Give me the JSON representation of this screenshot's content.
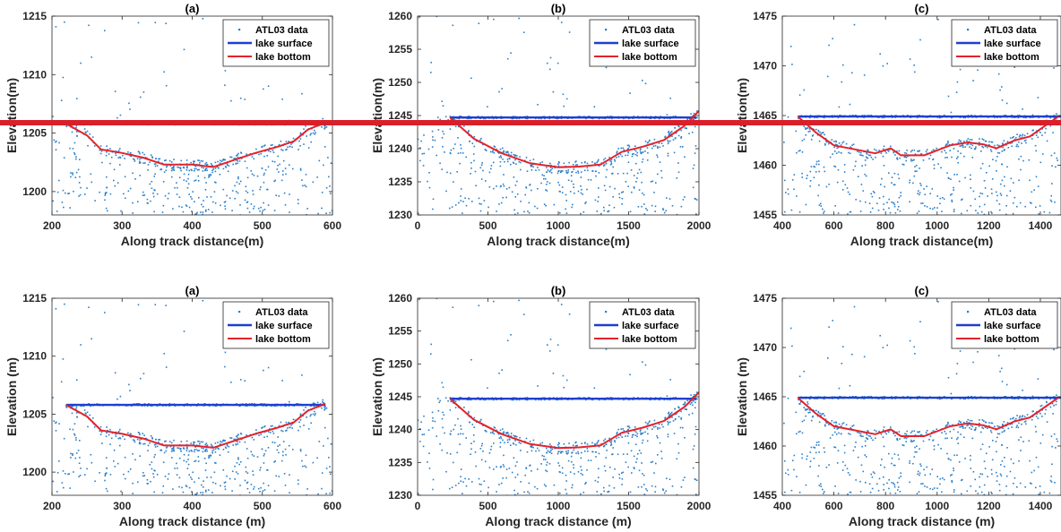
{
  "colors": {
    "points": "#2a7fc9",
    "surface": "#1f3fd0",
    "bottom": "#e3232b",
    "overlay_band": "#d9202a"
  },
  "legend": {
    "points": "ATL03 data",
    "surface": "lake surface",
    "bottom": "lake bottom"
  },
  "chart_data": [
    {
      "type": "scatter",
      "title": "(a)",
      "xlabel": "Along track distance(m)",
      "ylabel": "Elevation(m)",
      "xlim": [
        200,
        600
      ],
      "ylim": [
        1198,
        1215
      ],
      "xticks": [
        200,
        300,
        400,
        500,
        600
      ],
      "yticks": [
        1200,
        1205,
        1210,
        1215
      ],
      "surface": {
        "x": [
          220,
          590
        ],
        "y": 1205.8
      },
      "bottom": {
        "x": [
          220,
          250,
          270,
          300,
          330,
          360,
          400,
          430,
          460,
          490,
          520,
          545,
          565,
          590
        ],
        "y": [
          1205.8,
          1204.8,
          1203.6,
          1203.3,
          1202.9,
          1202.3,
          1202.3,
          1202.1,
          1202.7,
          1203.3,
          1203.8,
          1204.3,
          1205.3,
          1205.9
        ]
      },
      "legend_position": "top-right",
      "grid": false
    },
    {
      "type": "scatter",
      "title": "(b)",
      "xlabel": "Along track distance(m)",
      "ylabel": "Elevation(m)",
      "xlim": [
        0,
        2000
      ],
      "ylim": [
        1230,
        1260
      ],
      "xticks": [
        0,
        500,
        1000,
        1500,
        2000
      ],
      "yticks": [
        1230,
        1235,
        1240,
        1245,
        1250,
        1255,
        1260
      ],
      "surface": {
        "x": [
          230,
          1980
        ],
        "y": 1244.7
      },
      "bottom": {
        "x": [
          230,
          400,
          600,
          800,
          1000,
          1150,
          1300,
          1450,
          1600,
          1750,
          1900,
          2000
        ],
        "y": [
          1244.7,
          1241.5,
          1239.3,
          1237.8,
          1237.2,
          1237.3,
          1237.6,
          1239.5,
          1240.3,
          1241.3,
          1243.5,
          1245.7
        ]
      },
      "legend_position": "top-right",
      "grid": false
    },
    {
      "type": "scatter",
      "title": "(c)",
      "xlabel": "Along track distance(m)",
      "ylabel": "Elevation(m)",
      "xlim": [
        400,
        1480
      ],
      "ylim": [
        1455,
        1475
      ],
      "xticks": [
        400,
        600,
        800,
        1000,
        1200,
        1400
      ],
      "yticks": [
        1455,
        1460,
        1465,
        1470,
        1475
      ],
      "surface": {
        "x": [
          460,
          1480
        ],
        "y": 1464.9
      },
      "bottom": {
        "x": [
          460,
          530,
          600,
          680,
          760,
          820,
          860,
          950,
          1050,
          1120,
          1180,
          1230,
          1300,
          1360,
          1420,
          1470
        ],
        "y": [
          1464.9,
          1463.3,
          1462.0,
          1461.6,
          1461.2,
          1461.7,
          1461.0,
          1461.0,
          1462.0,
          1462.3,
          1462.1,
          1461.7,
          1462.5,
          1462.9,
          1464.0,
          1464.9
        ]
      },
      "legend_position": "top-right",
      "grid": false
    },
    {
      "type": "scatter",
      "title": "(a)",
      "xlabel": "Along track distance (m)",
      "ylabel": "Elevation (m)",
      "xlim": [
        200,
        600
      ],
      "ylim": [
        1198,
        1215
      ],
      "xticks": [
        200,
        300,
        400,
        500,
        600
      ],
      "yticks": [
        1200,
        1205,
        1210,
        1215
      ],
      "surface": {
        "x": [
          220,
          590
        ],
        "y": 1205.8
      },
      "bottom": {
        "x": [
          220,
          250,
          270,
          300,
          330,
          360,
          400,
          430,
          460,
          490,
          520,
          545,
          565,
          590
        ],
        "y": [
          1205.8,
          1204.8,
          1203.6,
          1203.3,
          1202.9,
          1202.3,
          1202.3,
          1202.1,
          1202.7,
          1203.3,
          1203.8,
          1204.3,
          1205.3,
          1205.9
        ]
      },
      "legend_position": "top-right",
      "grid": false
    },
    {
      "type": "scatter",
      "title": "(b)",
      "xlabel": "Along track distance (m)",
      "ylabel": "Elevation (m)",
      "xlim": [
        0,
        2000
      ],
      "ylim": [
        1230,
        1260
      ],
      "xticks": [
        0,
        500,
        1000,
        1500,
        2000
      ],
      "yticks": [
        1230,
        1235,
        1240,
        1245,
        1250,
        1255,
        1260
      ],
      "surface": {
        "x": [
          230,
          1980
        ],
        "y": 1244.7
      },
      "bottom": {
        "x": [
          230,
          400,
          600,
          800,
          1000,
          1150,
          1300,
          1450,
          1600,
          1750,
          1900,
          2000
        ],
        "y": [
          1244.7,
          1241.5,
          1239.3,
          1237.8,
          1237.2,
          1237.3,
          1237.6,
          1239.5,
          1240.3,
          1241.3,
          1243.5,
          1245.7
        ]
      },
      "legend_position": "top-right",
      "grid": false
    },
    {
      "type": "scatter",
      "title": "(c)",
      "xlabel": "Along track distance (m)",
      "ylabel": "Elevation (m)",
      "xlim": [
        400,
        1480
      ],
      "ylim": [
        1455,
        1475
      ],
      "xticks": [
        400,
        600,
        800,
        1000,
        1200,
        1400
      ],
      "yticks": [
        1455,
        1460,
        1465,
        1470,
        1475
      ],
      "surface": {
        "x": [
          460,
          1480
        ],
        "y": 1464.9
      },
      "bottom": {
        "x": [
          460,
          530,
          600,
          680,
          760,
          820,
          860,
          950,
          1050,
          1120,
          1180,
          1230,
          1300,
          1360,
          1420,
          1470
        ],
        "y": [
          1464.9,
          1463.3,
          1462.0,
          1461.6,
          1461.2,
          1461.7,
          1461.0,
          1461.0,
          1462.0,
          1462.3,
          1462.1,
          1461.7,
          1462.5,
          1462.9,
          1464.0,
          1464.9
        ]
      },
      "legend_position": "top-right",
      "grid": false
    }
  ]
}
